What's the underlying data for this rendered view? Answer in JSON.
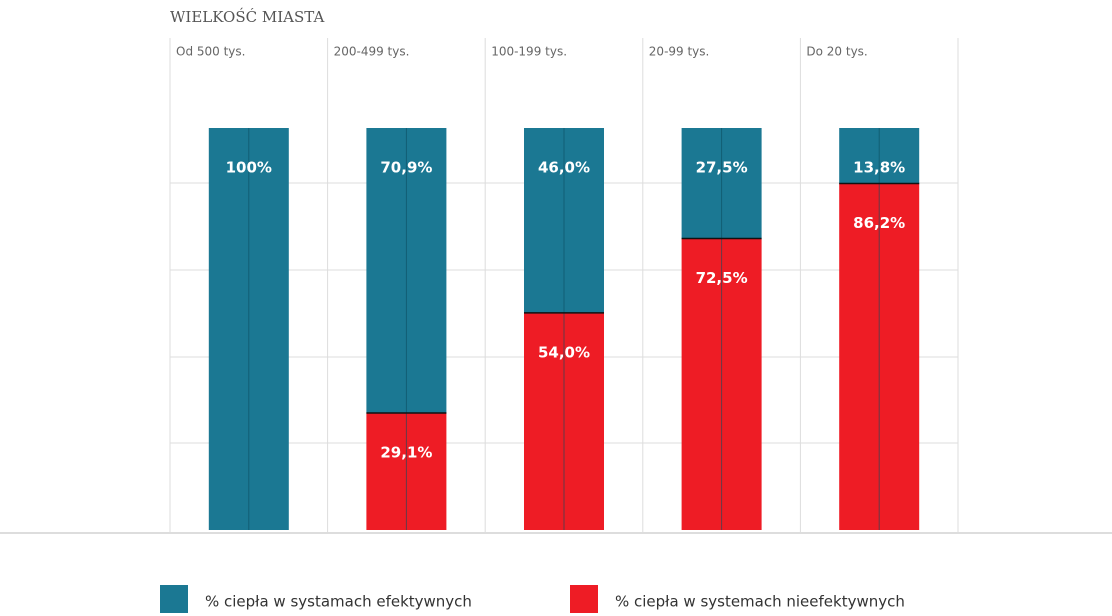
{
  "chart_data": {
    "type": "bar",
    "stacked": true,
    "title": "WIELKOŚĆ MIASTA",
    "categories": [
      "Od 500 tys.",
      "200-499 tys.",
      "100-199 tys.",
      "20-99 tys.",
      "Do 20 tys."
    ],
    "ylim": [
      0,
      100
    ],
    "series": [
      {
        "name": "% ciepła w systamach efektywnych",
        "color": "#1b7893",
        "values": [
          100,
          70.9,
          46.0,
          27.5,
          13.8
        ],
        "value_labels": [
          "100%",
          "70,9%",
          "46,0%",
          "27,5%",
          "13,8%"
        ]
      },
      {
        "name": "% ciepła w systemach nieefektywnych",
        "color": "#ee1c25",
        "values": [
          0,
          29.1,
          54.0,
          72.5,
          86.2
        ],
        "value_labels": [
          null,
          "29,1%",
          "54,0%",
          "72,5%",
          "86,2%"
        ]
      }
    ]
  }
}
